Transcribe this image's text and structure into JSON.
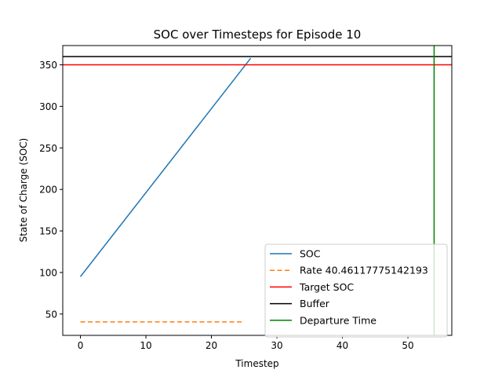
{
  "chart_data": {
    "type": "line",
    "title": "SOC over Timesteps for Episode 10",
    "xlabel": "Timestep",
    "ylabel": "State of Charge (SOC)",
    "xlim": [
      -2.7,
      56.7
    ],
    "ylim": [
      24.3,
      373.2
    ],
    "xticks": [
      0,
      10,
      20,
      30,
      40,
      50
    ],
    "yticks": [
      50,
      100,
      150,
      200,
      250,
      300,
      350
    ],
    "grid": false,
    "legend_position": "lower-right",
    "series": [
      {
        "name": "SOC",
        "kind": "line",
        "color": "#1f77b4",
        "style": "solid",
        "x": [
          0,
          26
        ],
        "y": [
          95,
          358
        ]
      },
      {
        "name": "Rate 40.46117775142193",
        "kind": "line",
        "color": "#ff7f0e",
        "style": "dashed",
        "x": [
          0,
          25
        ],
        "y": [
          40.46,
          40.46
        ]
      },
      {
        "name": "Target SOC",
        "kind": "hline",
        "color": "#ff0000",
        "style": "solid",
        "y": 350
      },
      {
        "name": "Buffer",
        "kind": "hline",
        "color": "#000000",
        "style": "solid",
        "y": 360
      },
      {
        "name": "Departure Time",
        "kind": "vline",
        "color": "#008000",
        "style": "solid",
        "x": 54
      }
    ]
  }
}
